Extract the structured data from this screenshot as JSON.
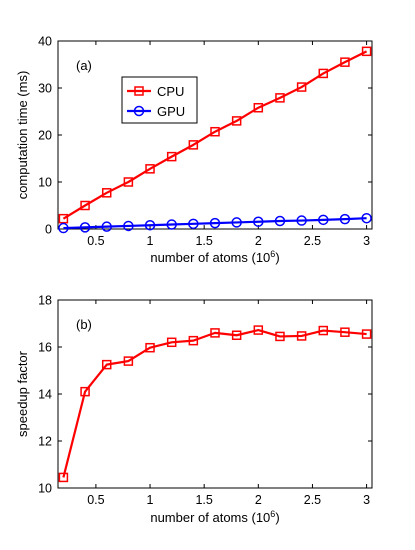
{
  "chart_data": [
    {
      "type": "line",
      "panel_label": "(a)",
      "xlabel": "number of atoms (10",
      "xlabel_exp": "6",
      "xlabel_close": ")",
      "ylabel": "computation time (ms)",
      "xlim": [
        0.15,
        3.05
      ],
      "ylim": [
        0,
        40
      ],
      "x_ticks": [
        0.5,
        1,
        1.5,
        2,
        2.5,
        3
      ],
      "x_tick_labels": [
        "0.5",
        "1",
        "1.5",
        "2",
        "2.5",
        "3"
      ],
      "y_ticks": [
        0,
        10,
        20,
        30,
        40
      ],
      "y_tick_labels": [
        "0",
        "10",
        "20",
        "30",
        "40"
      ],
      "legend_position": "upper-left-inside",
      "grid": false,
      "x": [
        0.2,
        0.4,
        0.6,
        0.8,
        1.0,
        1.2,
        1.4,
        1.6,
        1.8,
        2.0,
        2.2,
        2.4,
        2.6,
        2.8,
        3.0
      ],
      "series": [
        {
          "name": "CPU",
          "color": "#ff0000",
          "marker": "square",
          "values": [
            2.2,
            5.0,
            7.7,
            10.0,
            12.8,
            15.4,
            17.9,
            20.7,
            23.0,
            25.8,
            27.9,
            30.2,
            33.1,
            35.5,
            37.8
          ]
        },
        {
          "name": "GPU",
          "color": "#0000ff",
          "marker": "circle",
          "values": [
            0.2,
            0.35,
            0.5,
            0.65,
            0.8,
            0.95,
            1.1,
            1.25,
            1.4,
            1.55,
            1.7,
            1.8,
            1.95,
            2.1,
            2.3
          ]
        }
      ]
    },
    {
      "type": "line",
      "panel_label": "(b)",
      "xlabel": "number of atoms (10",
      "xlabel_exp": "6",
      "xlabel_close": ")",
      "ylabel": "speedup factor",
      "xlim": [
        0.15,
        3.05
      ],
      "ylim": [
        10,
        18
      ],
      "x_ticks": [
        0.5,
        1,
        1.5,
        2,
        2.5,
        3
      ],
      "x_tick_labels": [
        "0.5",
        "1",
        "1.5",
        "2",
        "2.5",
        "3"
      ],
      "y_ticks": [
        10,
        12,
        14,
        16,
        18
      ],
      "y_tick_labels": [
        "10",
        "12",
        "14",
        "16",
        "18"
      ],
      "grid": false,
      "x": [
        0.2,
        0.4,
        0.6,
        0.8,
        1.0,
        1.2,
        1.4,
        1.6,
        1.8,
        2.0,
        2.2,
        2.4,
        2.6,
        2.8,
        3.0
      ],
      "series": [
        {
          "name": "",
          "color": "#ff0000",
          "marker": "square",
          "values": [
            10.45,
            14.1,
            15.25,
            15.4,
            15.97,
            16.2,
            16.27,
            16.6,
            16.5,
            16.72,
            16.45,
            16.47,
            16.7,
            16.63,
            16.55
          ]
        }
      ]
    }
  ]
}
